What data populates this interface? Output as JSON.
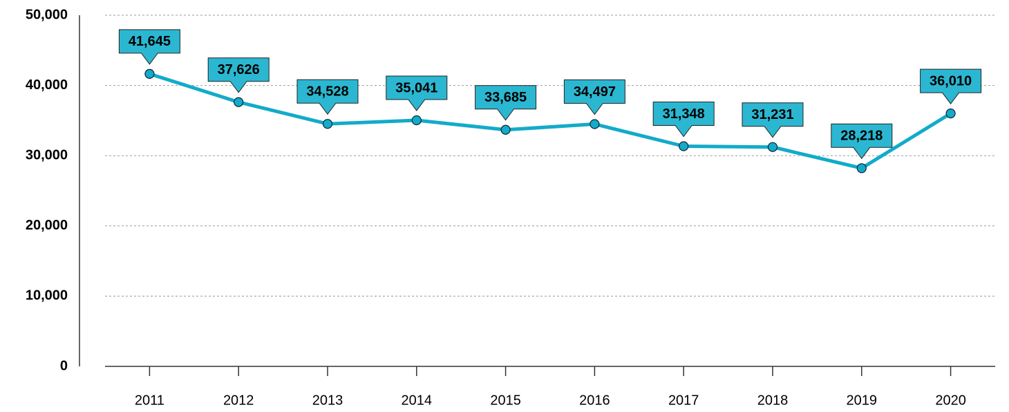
{
  "chart_data": {
    "type": "line",
    "categories": [
      "2011",
      "2012",
      "2013",
      "2014",
      "2015",
      "2016",
      "2017",
      "2018",
      "2019",
      "2020"
    ],
    "values": [
      41645,
      37626,
      34528,
      35041,
      33685,
      34497,
      31348,
      31231,
      28218,
      36010
    ],
    "value_labels": [
      "41,645",
      "37,626",
      "34,528",
      "35,041",
      "33,685",
      "34,497",
      "31,348",
      "31,231",
      "28,218",
      "36,010"
    ],
    "color": "#12abc9",
    "ylim": [
      0,
      50000
    ],
    "yticks": [
      0,
      {
        "value": 10000,
        "label": "10,000"
      },
      {
        "value": 20000,
        "label": "20,000"
      },
      {
        "value": 30000,
        "label": "30,000"
      },
      {
        "value": 40000,
        "label": "40,000"
      },
      {
        "value": 50000,
        "label": "50,000"
      }
    ],
    "grid": true
  }
}
